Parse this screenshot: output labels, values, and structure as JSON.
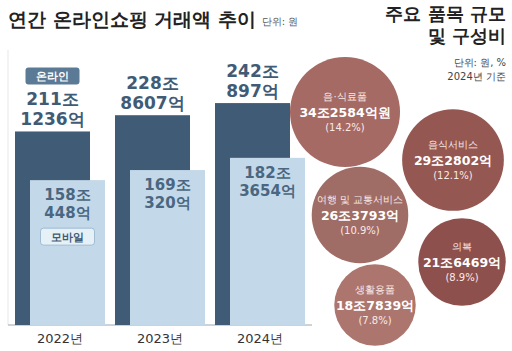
{
  "chart_data": [
    {
      "type": "bar",
      "title": "연간 온라인쇼핑 거래액 추이",
      "subtitle": "단위: 원",
      "categories": [
        "2022년",
        "2023년",
        "2024년"
      ],
      "series": [
        {
          "name": "온라인",
          "color": "#3f5b75",
          "values": [
            211123600000000,
            228860700000000,
            242089700000000
          ],
          "value_labels": [
            "211조 1236억",
            "228조 8607억",
            "242조 897억"
          ]
        },
        {
          "name": "모바일",
          "color": "#c3d8e8",
          "values": [
            158044800000000,
            169032000000000,
            182365400000000
          ],
          "value_labels": [
            "158조 448억",
            "169조 320억",
            "182조 3654억"
          ]
        }
      ],
      "ylim": [
        0,
        300000000000000
      ],
      "yticks": [],
      "tick_labels": "x",
      "data_labels": true,
      "grid": false
    },
    {
      "type": "bubble",
      "title": "주요 품목 규모 및 구성비",
      "subtitle": "단위: 원, %",
      "annotations": [
        "2024년 기준"
      ],
      "categories": [
        "음·식료품",
        "음식서비스",
        "여행 및 교통서비스",
        "의복",
        "생활용품"
      ],
      "values": [
        34258400000000,
        29280200000000,
        26379300000000,
        21646900000000,
        18783900000000
      ],
      "value_labels": [
        "34조2584억원",
        "29조2802억",
        "26조3793억",
        "21조6469억",
        "18조7839억"
      ],
      "shares": [
        14.2,
        12.1,
        10.9,
        8.9,
        7.8
      ],
      "share_labels": [
        "(14.2%)",
        "(12.1%)",
        "(10.9%)",
        "(8.9%)",
        "(7.8%)"
      ],
      "colors": [
        "#9e5f58",
        "#8c4a45",
        "#98615a",
        "#84433f",
        "#a66c63"
      ],
      "data_labels": true
    }
  ]
}
